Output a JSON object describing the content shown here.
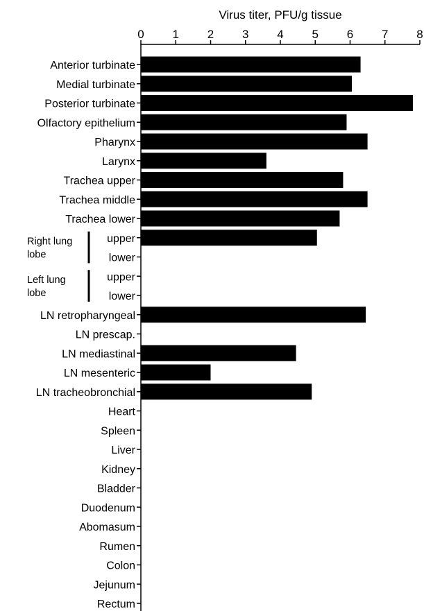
{
  "chart_data": {
    "type": "bar",
    "orientation": "horizontal",
    "xlabel": "Virus titer, PFU/g tissue",
    "xlim": [
      0,
      8
    ],
    "xticks": [
      0,
      1,
      2,
      3,
      4,
      5,
      6,
      7,
      8
    ],
    "x_axis_position": "top",
    "grid": false,
    "bar_color": "#000000",
    "categories": [
      "Anterior turbinate",
      "Medial turbinate",
      "Posterior turbinate",
      "Olfactory epithelium",
      "Pharynx",
      "Larynx",
      "Trachea upper",
      "Trachea middle",
      "Trachea lower",
      "upper",
      "lower",
      "upper",
      "lower",
      "LN retropharyngeal",
      "LN prescap.",
      "LN mediastinal",
      "LN mesenteric",
      "LN tracheobronchial",
      "Heart",
      "Spleen",
      "Liver",
      "Kidney",
      "Bladder",
      "Duodenum",
      "Abomasum",
      "Rumen",
      "Colon",
      "Jejunum",
      "Rectum"
    ],
    "values": [
      6.3,
      6.05,
      7.8,
      5.9,
      6.5,
      3.6,
      5.8,
      6.5,
      5.7,
      5.05,
      0,
      0,
      0,
      6.45,
      0,
      4.45,
      2.0,
      4.9,
      0,
      0,
      0,
      0,
      0,
      0,
      0,
      0,
      0,
      0,
      0
    ],
    "groups": [
      {
        "label_line1": "Right lung",
        "label_line2": "lobe",
        "rows": [
          9,
          10
        ]
      },
      {
        "label_line1": "Left lung",
        "label_line2": "lobe",
        "rows": [
          11,
          12
        ]
      }
    ]
  }
}
